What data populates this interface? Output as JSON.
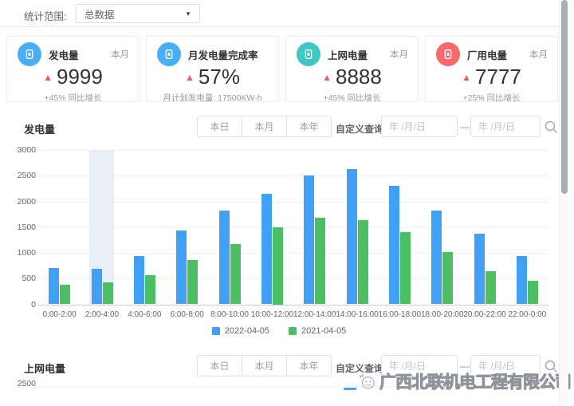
{
  "icons": {
    "up_triangle": "▲",
    "caret_down": "▼"
  },
  "topbar": {
    "label": "统计范围:",
    "selected_value": "总数据"
  },
  "cards": [
    {
      "title": "发电量",
      "period": "本月",
      "value": "9999",
      "sub": "+45% 同比增长",
      "icon": "document-icon",
      "icon_color": "#49aef3"
    },
    {
      "title": "月发电量完成率",
      "period": "",
      "value": "57%",
      "sub": "月计划发电量: 17500KW·h",
      "icon": "document-icon",
      "icon_color": "#49aef3"
    },
    {
      "title": "上网电量",
      "period": "本月",
      "value": "8888",
      "sub": "+45% 同比增长",
      "icon": "document-icon",
      "icon_color": "#3ec8c3"
    },
    {
      "title": "厂用电量",
      "period": "本月",
      "value": "7777",
      "sub": "+25% 同比增长",
      "icon": "document-icon",
      "icon_color": "#f8696b"
    }
  ],
  "sections": [
    {
      "title": "发电量"
    },
    {
      "title": "上网电量"
    }
  ],
  "controls": {
    "day": "本日",
    "month": "本月",
    "year": "本年",
    "query_label": "自定义查询:",
    "date_placeholder": "年 /月/日",
    "dash": "—"
  },
  "chart_data": [
    {
      "type": "bar",
      "title": "发电量",
      "categories": [
        "0:00-2:00",
        "2:00-4:00",
        "4:00-6:00",
        "6:00-8:00",
        "8:00-10:00",
        "10:00-12:00",
        "12:00-14:00",
        "14:00-16:00",
        "16:00-18:00",
        "18:00-20:00",
        "20:00-22:00",
        "22:00-0:00"
      ],
      "series": [
        {
          "name": "2022-04-05",
          "color": "#3fa0f4",
          "values": [
            700,
            695,
            945,
            1440,
            1825,
            2140,
            2505,
            2630,
            2310,
            1815,
            1370,
            945
          ]
        },
        {
          "name": "2021-04-05",
          "color": "#4cbe64",
          "values": [
            385,
            425,
            570,
            860,
            1170,
            1500,
            1685,
            1635,
            1410,
            1015,
            650,
            465
          ]
        }
      ],
      "ylim": [
        0,
        3000
      ],
      "yticks": [
        0,
        500,
        1000,
        1500,
        2000,
        2500,
        3000
      ],
      "grid": "dotted-horizontal",
      "legend_position": "bottom",
      "highlighted_category_index": 1
    },
    {
      "type": "bar",
      "title": "上网电量",
      "yticks": [
        2500
      ]
    }
  ],
  "watermark": {
    "company": "广西北联机电工程有限公司"
  },
  "colors": {
    "bar_blue": "#3fa0f4",
    "bar_green": "#4cbe64",
    "delta_red": "#f25a5a",
    "hover_band": "#eaeef7"
  }
}
